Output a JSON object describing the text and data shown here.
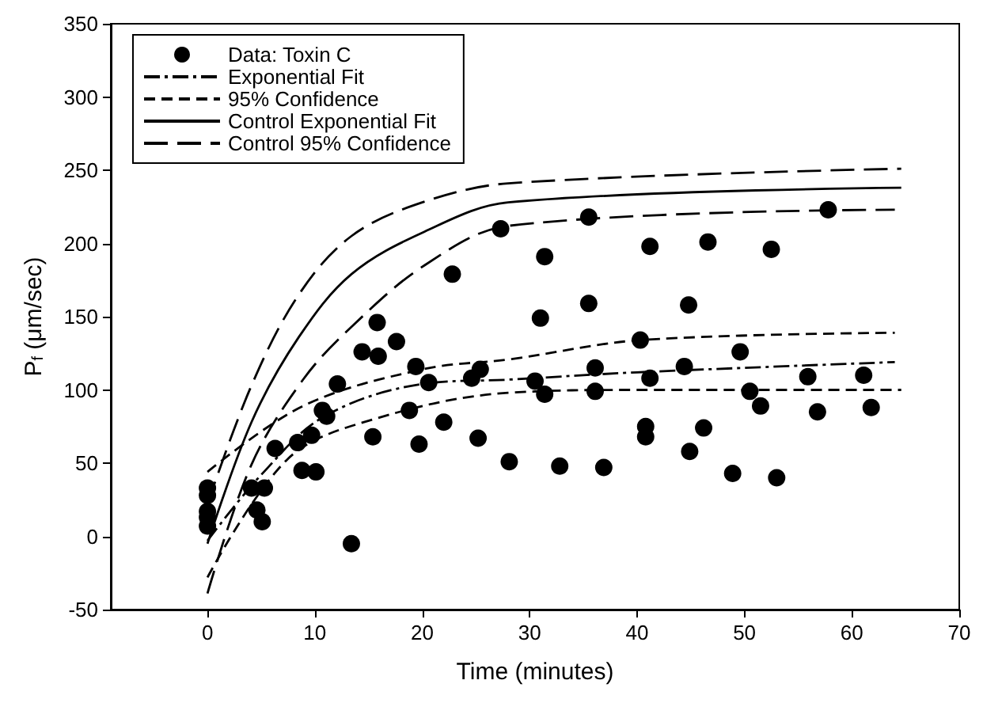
{
  "chart_data": {
    "type": "scatter",
    "xlabel": "Time (minutes)",
    "ylabel": "P$_{f}$ (μm/sec)",
    "xlim": [
      -9,
      70
    ],
    "xticks": [
      0,
      10,
      20,
      30,
      40,
      50,
      60,
      70
    ],
    "ylim": [
      -50,
      350
    ],
    "yticks": [
      -50,
      0,
      50,
      100,
      150,
      200,
      250,
      300,
      350
    ],
    "grid": false,
    "legend": "top left",
    "series": [
      {
        "name": "Data: Toxin C",
        "type": "scatter",
        "marker": "circle",
        "color": "#000000",
        "x": [
          0,
          0,
          0,
          0,
          0,
          4.1,
          4.6,
          5.1,
          5.3,
          6.3,
          8.4,
          8.8,
          9.7,
          10.1,
          10.7,
          11.1,
          12.1,
          13.4,
          14.4,
          15.4,
          15.8,
          15.9,
          17.6,
          18.8,
          19.4,
          19.7,
          20.6,
          22.0,
          22.8,
          24.6,
          25.2,
          25.4,
          27.3,
          28.1,
          30.5,
          31.0,
          31.4,
          31.4,
          32.8,
          35.5,
          35.5,
          36.1,
          36.1,
          36.9,
          40.3,
          40.8,
          40.8,
          41.2,
          41.2,
          44.4,
          44.8,
          44.9,
          46.2,
          46.6,
          48.9,
          49.6,
          50.5,
          51.5,
          52.5,
          53.0,
          55.9,
          56.8,
          57.8,
          61.1,
          61.8
        ],
        "values": [
          33,
          28,
          17,
          13,
          7,
          33,
          18,
          10,
          33,
          60,
          64,
          45,
          69,
          44,
          86,
          82,
          104,
          -5,
          126,
          68,
          146,
          123,
          133,
          86,
          116,
          63,
          105,
          78,
          179,
          108,
          67,
          114,
          210,
          51,
          106,
          149,
          191,
          97,
          48,
          218,
          159,
          115,
          99,
          47,
          134,
          75,
          68,
          198,
          108,
          116,
          158,
          58,
          74,
          201,
          43,
          126,
          99,
          89,
          196,
          40,
          109,
          85,
          223,
          110,
          88
        ]
      },
      {
        "name": "Exponential Fit",
        "type": "line",
        "marker": "none",
        "line_style": "dashdot",
        "color": "#000000",
        "x": [
          0,
          5,
          10.9,
          20,
          28,
          40,
          64
        ],
        "values": [
          -3,
          42,
          82,
          104,
          107,
          112,
          119
        ]
      },
      {
        "name": "95% Confidence",
        "type": "line",
        "marker": "none",
        "line_style": "dashed",
        "color": "#000000",
        "x": [
          0,
          8.9,
          20,
          28.3,
          40.3,
          64
        ],
        "values": [
          44,
          89,
          114,
          121,
          134,
          139
        ]
      },
      {
        "type": "line",
        "marker": "none",
        "line_style": "dashed",
        "color": "#000000",
        "x": [
          0,
          7.5,
          15.5,
          28,
          40.3,
          64.6
        ],
        "values": [
          -28,
          53,
          80,
          98,
          100,
          100
        ]
      },
      {
        "name": "Control Exponential Fit",
        "type": "line",
        "marker": "none",
        "line_style": "solid",
        "color": "#000000",
        "x": [
          0,
          4.1,
          8.5,
          13.4,
          20.2,
          28,
          64.6
        ],
        "values": [
          -5,
          78,
          136,
          179,
          208,
          228,
          238
        ]
      },
      {
        "name": "Control 95% Confidence",
        "type": "line",
        "marker": "none",
        "line_style": "longdash",
        "color": "#000000",
        "x": [
          0,
          4.1,
          8.5,
          13.4,
          20,
          28,
          64.6
        ],
        "values": [
          22,
          103,
          165,
          205,
          228,
          241,
          251
        ]
      },
      {
        "type": "line",
        "marker": "none",
        "line_style": "longdash",
        "color": "#000000",
        "x": [
          0,
          4.1,
          8.9,
          13.4,
          20.2,
          28,
          64
        ],
        "values": [
          -39,
          49,
          107,
          143,
          185,
          212,
          223
        ]
      }
    ]
  }
}
